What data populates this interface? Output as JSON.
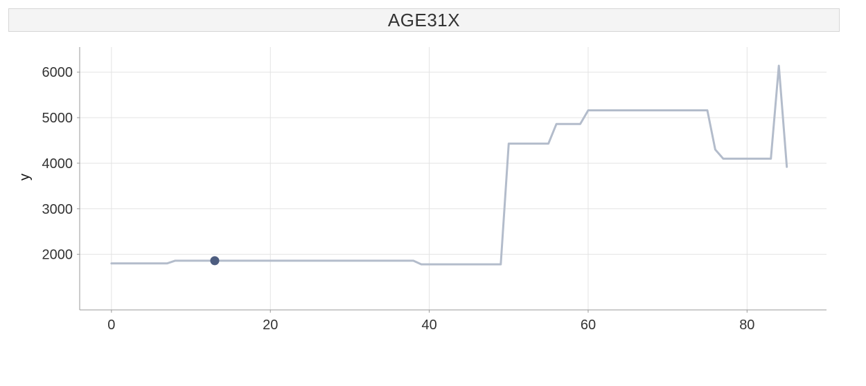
{
  "chart_data": {
    "type": "line",
    "title": "AGE31X",
    "xlabel": "",
    "ylabel": "y",
    "xlim": [
      -4,
      90
    ],
    "ylim": [
      780,
      6550
    ],
    "x_ticks": [
      0,
      20,
      40,
      60,
      80
    ],
    "y_ticks": [
      2000,
      3000,
      4000,
      5000,
      6000
    ],
    "grid": true,
    "legend": "none",
    "colors": {
      "line": "#b3bccb",
      "point": "#4d5d80",
      "grid": "#e3e3e3",
      "axis": "#999999",
      "strip_bg": "#f4f4f4"
    },
    "series": [
      {
        "x": [
          0,
          1,
          2,
          3,
          4,
          5,
          6,
          7,
          8,
          9,
          10,
          11,
          12,
          13,
          14,
          15,
          16,
          17,
          18,
          19,
          20,
          21,
          22,
          23,
          24,
          25,
          26,
          27,
          28,
          29,
          30,
          31,
          32,
          33,
          34,
          35,
          36,
          37,
          38,
          39,
          40,
          41,
          42,
          43,
          44,
          45,
          46,
          47,
          48,
          49,
          50,
          51,
          52,
          53,
          54,
          55,
          56,
          57,
          58,
          59,
          60,
          61,
          62,
          63,
          64,
          65,
          66,
          67,
          68,
          69,
          70,
          71,
          72,
          73,
          74,
          75,
          76,
          77,
          78,
          79,
          80,
          81,
          82,
          83,
          84,
          85
        ],
        "y": [
          1800,
          1800,
          1800,
          1800,
          1800,
          1800,
          1800,
          1800,
          1860,
          1860,
          1860,
          1860,
          1860,
          1860,
          1860,
          1860,
          1860,
          1860,
          1860,
          1860,
          1860,
          1860,
          1860,
          1860,
          1860,
          1860,
          1860,
          1860,
          1860,
          1860,
          1860,
          1860,
          1860,
          1860,
          1860,
          1860,
          1860,
          1860,
          1860,
          1780,
          1780,
          1780,
          1780,
          1780,
          1780,
          1780,
          1780,
          1780,
          1780,
          1780,
          4430,
          4430,
          4430,
          4430,
          4430,
          4430,
          4860,
          4860,
          4860,
          4860,
          5160,
          5160,
          5160,
          5160,
          5160,
          5160,
          5160,
          5160,
          5160,
          5160,
          5160,
          5160,
          5160,
          5160,
          5160,
          5160,
          4300,
          4100,
          4100,
          4100,
          4100,
          4100,
          4100,
          4100,
          6140,
          3920
        ]
      }
    ],
    "highlight_point": {
      "x": 13,
      "y": 1860
    }
  }
}
